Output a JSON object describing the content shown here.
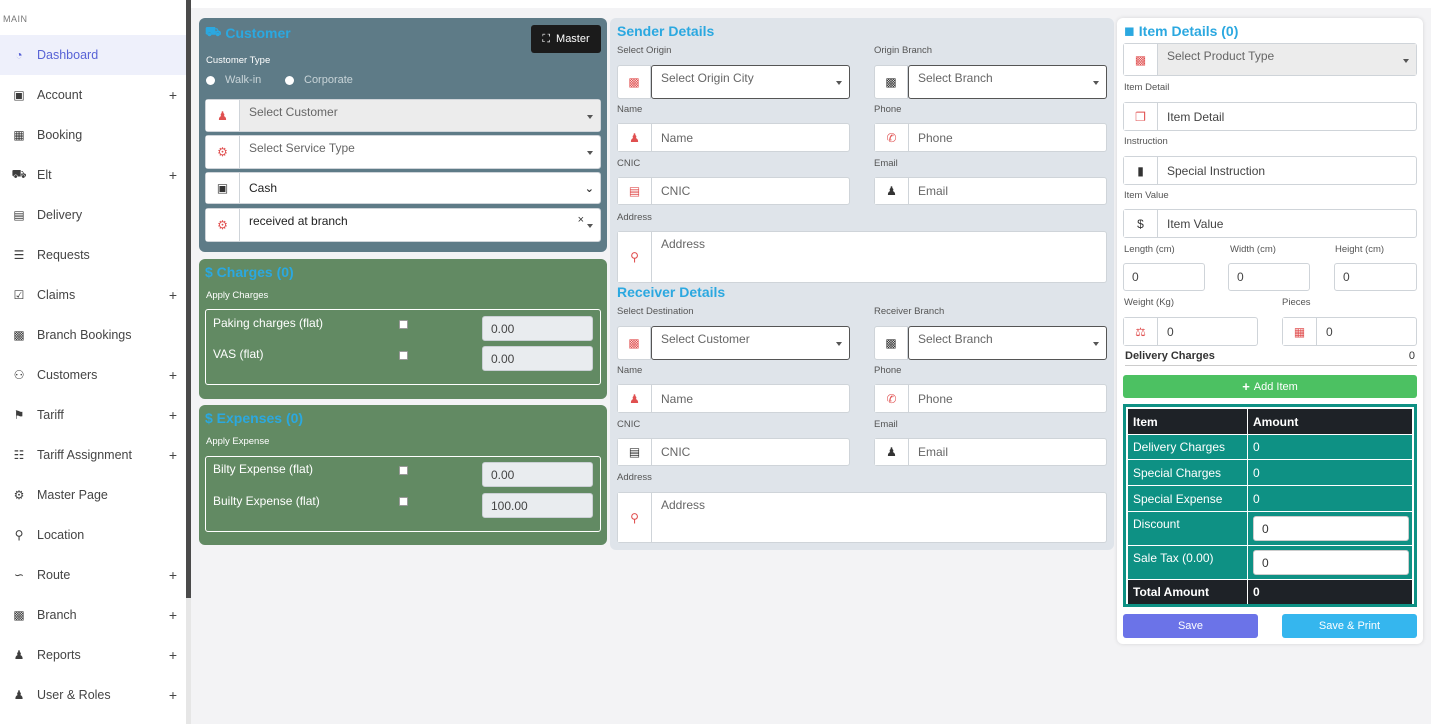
{
  "sidebar": {
    "section": "MAIN",
    "items": [
      {
        "label": "Dashboard",
        "icon": "dashboard-icon",
        "expand": false
      },
      {
        "label": "Account",
        "icon": "wallet-icon",
        "expand": true
      },
      {
        "label": "Booking",
        "icon": "calendar-icon",
        "expand": false
      },
      {
        "label": "Elt",
        "icon": "truck-icon",
        "expand": true
      },
      {
        "label": "Delivery",
        "icon": "dolly-icon",
        "expand": false
      },
      {
        "label": "Requests",
        "icon": "list-check-icon",
        "expand": false
      },
      {
        "label": "Claims",
        "icon": "clipboard-check-icon",
        "expand": true
      },
      {
        "label": "Branch Bookings",
        "icon": "building-icon",
        "expand": false
      },
      {
        "label": "Customers",
        "icon": "users-icon",
        "expand": true
      },
      {
        "label": "Tariff",
        "icon": "tags-icon",
        "expand": true
      },
      {
        "label": "Tariff Assignment",
        "icon": "sitemap-icon",
        "expand": true
      },
      {
        "label": "Master Page",
        "icon": "cogs-icon",
        "expand": false
      },
      {
        "label": "Location",
        "icon": "map-marker-icon",
        "expand": false
      },
      {
        "label": "Route",
        "icon": "route-icon",
        "expand": true
      },
      {
        "label": "Branch",
        "icon": "building-icon",
        "expand": true
      },
      {
        "label": "Reports",
        "icon": "user-cog-icon",
        "expand": true
      },
      {
        "label": "User & Roles",
        "icon": "user-cog-icon",
        "expand": true
      }
    ],
    "expand_symbol": "+"
  },
  "customer": {
    "title": "Customer",
    "master_button": "Master",
    "type_label": "Customer Type",
    "walkin": "Walk-in",
    "corporate": "Corporate",
    "customer_placeholder": "Select Customer",
    "service_placeholder": "Select Service Type",
    "payment_value": "Cash",
    "status_value": "received at branch",
    "clear_symbol": "×"
  },
  "charges": {
    "title": "$ Charges (0)",
    "apply_label": "Apply Charges",
    "rows": [
      {
        "label": "Paking charges (flat)",
        "value": "0.00"
      },
      {
        "label": "VAS (flat)",
        "value": "0.00"
      }
    ]
  },
  "expenses": {
    "title": "$ Expenses (0)",
    "apply_label": "Apply Expense",
    "rows": [
      {
        "label": "Bilty Expense (flat)",
        "value": "0.00"
      },
      {
        "label": "Builty Expense (flat)",
        "value": "100.00"
      }
    ]
  },
  "sender": {
    "title": "Sender Details",
    "origin_label": "Select Origin",
    "origin_placeholder": "Select Origin City",
    "branch_label": "Origin Branch",
    "branch_placeholder": "Select Branch",
    "name_label": "Name",
    "name_placeholder": "Name",
    "phone_label": "Phone",
    "phone_placeholder": "Phone",
    "cnic_label": "CNIC",
    "cnic_placeholder": "CNIC",
    "email_label": "Email",
    "email_placeholder": "Email",
    "address_label": "Address",
    "address_placeholder": "Address"
  },
  "receiver": {
    "title": "Receiver Details",
    "dest_label": "Select Destination",
    "dest_placeholder": "Select Customer",
    "branch_label": "Receiver Branch",
    "branch_placeholder": "Select Branch",
    "name_label": "Name",
    "name_placeholder": "Name",
    "phone_label": "Phone",
    "phone_placeholder": "Phone",
    "cnic_label": "CNIC",
    "cnic_placeholder": "CNIC",
    "email_label": "Email",
    "email_placeholder": "Email",
    "address_label": "Address",
    "address_placeholder": "Address"
  },
  "items": {
    "title": "Item Details (0)",
    "product_placeholder": "Select Product Type",
    "detail_label": "Item Detail",
    "detail_placeholder": "Item Detail",
    "instruction_label": "Instruction",
    "instruction_placeholder": "Special Instruction",
    "value_label": "Item Value",
    "value_placeholder": "Item Value",
    "length_label": "Length (cm)",
    "width_label": "Width (cm)",
    "height_label": "Height (cm)",
    "length_value": "0",
    "width_value": "0",
    "height_value": "0",
    "weight_label": "Weight (Kg)",
    "pieces_label": "Pieces",
    "weight_value": "0",
    "pieces_value": "0",
    "delivery_charges_label": "Delivery Charges",
    "delivery_charges_value": "0",
    "add_item": "Add Item"
  },
  "summary": {
    "head_item": "Item",
    "head_amount": "Amount",
    "delivery_label": "Delivery Charges",
    "delivery_value": "0",
    "special_label": "Special Charges",
    "special_value": "0",
    "expense_label": "Special Expense",
    "expense_value": "0",
    "discount_label": "Discount",
    "discount_value": "0",
    "tax_label": "Sale Tax (0.00)",
    "tax_value": "0",
    "total_label": "Total Amount",
    "total_value": "0"
  },
  "actions": {
    "save": "Save",
    "save_print": "Save & Print"
  },
  "colors": {
    "accent": "#5863d6",
    "title": "#2ba8e0",
    "customer_panel": "#5e7b87",
    "charges_panel": "#628a63",
    "summary_teal": "#0e9184",
    "add_green": "#4cc162"
  }
}
